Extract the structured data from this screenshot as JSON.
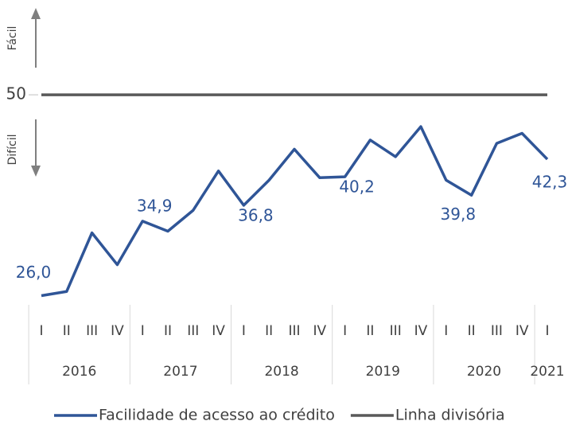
{
  "chart_data": {
    "type": "line",
    "categories": [
      "I",
      "II",
      "III",
      "IV",
      "I",
      "II",
      "III",
      "IV",
      "I",
      "II",
      "III",
      "IV",
      "I",
      "II",
      "III",
      "IV",
      "I",
      "II",
      "III",
      "IV",
      "I"
    ],
    "years": [
      "2016",
      "2017",
      "2018",
      "2019",
      "2020",
      "2021"
    ],
    "series": [
      {
        "name": "Facilidade de acesso ao crédito",
        "color": "#2f5597",
        "values": [
          26.0,
          26.5,
          33.5,
          29.7,
          34.9,
          33.7,
          36.2,
          40.9,
          36.8,
          39.8,
          43.5,
          40.1,
          40.2,
          44.6,
          42.6,
          46.2,
          39.8,
          38.0,
          44.2,
          45.4,
          42.3
        ],
        "value_labels": [
          "26,0",
          null,
          null,
          null,
          "34,9",
          null,
          null,
          null,
          "36,8",
          null,
          null,
          null,
          "40,2",
          null,
          null,
          null,
          "39,8",
          null,
          null,
          null,
          "42,3"
        ]
      },
      {
        "name": "Linha divisória",
        "color": "#595959",
        "values": [
          50,
          50,
          50,
          50,
          50,
          50,
          50,
          50,
          50,
          50,
          50,
          50,
          50,
          50,
          50,
          50,
          50,
          50,
          50,
          50,
          50
        ]
      }
    ],
    "ylim": [
      25,
      58
    ],
    "yticks": [
      50
    ],
    "annotations": [
      "Fácil",
      "Difícil"
    ]
  }
}
